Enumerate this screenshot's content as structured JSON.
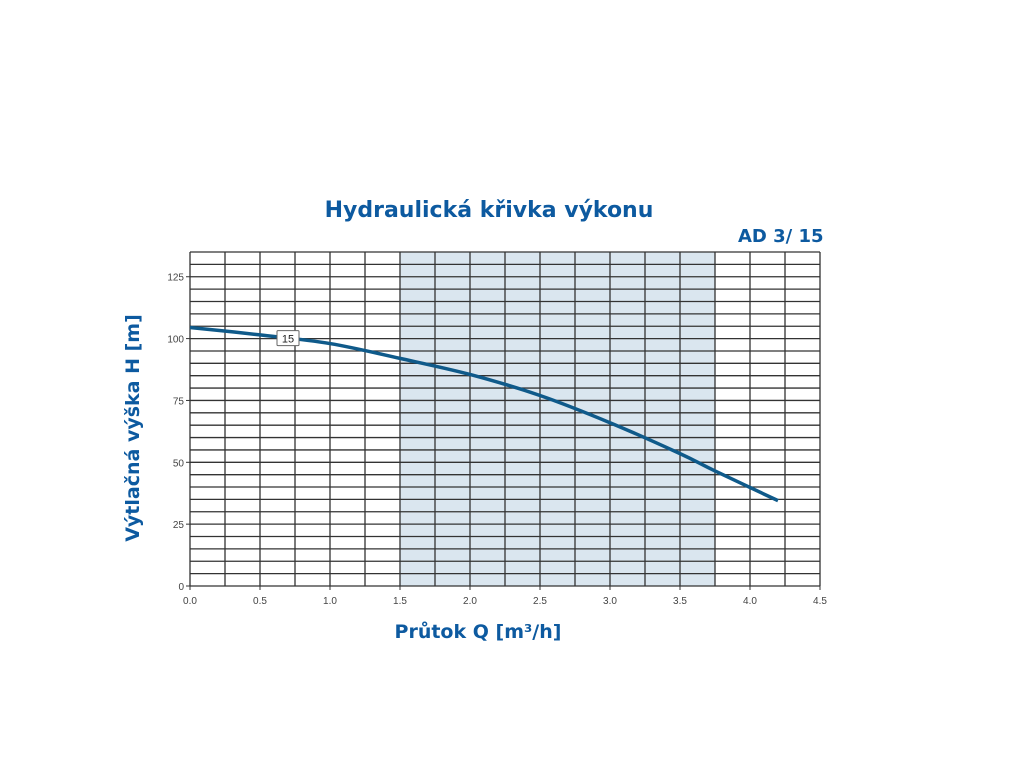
{
  "chart_data": {
    "type": "line",
    "title": "Hydraulická křivka výkonu",
    "model": "AD 3/ 15",
    "xlabel": "Průtok Q [m³/h]",
    "ylabel": "Výtlačná výška H [m]",
    "xlim": [
      0,
      4.5
    ],
    "ylim": [
      0,
      135
    ],
    "xticks": [
      "0.0",
      "0.5",
      "1.0",
      "1.5",
      "2.0",
      "2.5",
      "3.0",
      "3.5",
      "4.0",
      "4.5"
    ],
    "yticks": [
      "0",
      "25",
      "50",
      "75",
      "100",
      "125"
    ],
    "grid": true,
    "grid_minor_x": 0.25,
    "grid_minor_y": 5,
    "recommended_range": [
      1.5,
      3.75
    ],
    "colors": {
      "curve": "#0f5a8a",
      "shade": "#dae6ef",
      "text": "#0d5aa0"
    },
    "series": [
      {
        "name": "15",
        "label_at": [
          0.7,
          100
        ],
        "x": [
          0,
          0.5,
          1.0,
          1.5,
          2.0,
          2.5,
          3.0,
          3.5,
          3.75,
          4.2
        ],
        "y": [
          104.5,
          101.5,
          98,
          92,
          85.5,
          77,
          66,
          53.5,
          46.5,
          34.5
        ]
      }
    ]
  }
}
